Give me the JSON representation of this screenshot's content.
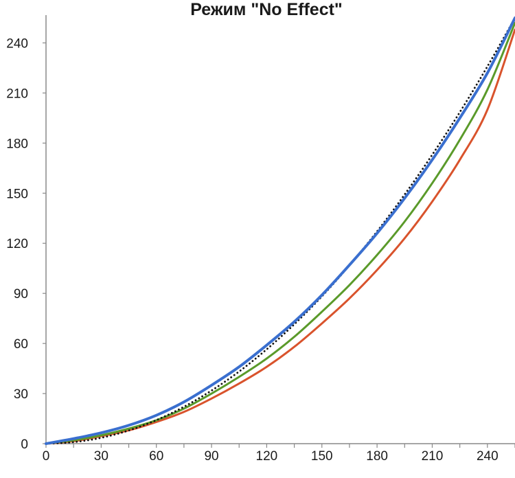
{
  "chart_data": {
    "type": "line",
    "title": "Режим \"No Effect\"",
    "xlabel": "",
    "ylabel": "",
    "xlim": [
      0,
      255
    ],
    "ylim": [
      0,
      255
    ],
    "xticks": [
      "0",
      "30",
      "60",
      "90",
      "120",
      "150",
      "180",
      "210",
      "240"
    ],
    "yticks": [
      "0",
      "30",
      "60",
      "90",
      "120",
      "150",
      "180",
      "210",
      "240"
    ],
    "grid": false,
    "legend": "none",
    "series": [
      {
        "color": "#3a6fcf",
        "style": "solid",
        "x": [
          0,
          15,
          30,
          45,
          60,
          75,
          90,
          105,
          120,
          135,
          150,
          165,
          180,
          195,
          210,
          225,
          240,
          255
        ],
        "y": [
          0,
          3,
          6.5,
          11,
          17,
          25,
          35,
          46,
          59,
          73,
          89,
          107,
          126,
          147,
          170,
          195,
          222,
          255
        ]
      },
      {
        "color": "#5a9a2a",
        "style": "solid",
        "x": [
          0,
          15,
          30,
          45,
          60,
          75,
          90,
          105,
          120,
          135,
          150,
          165,
          180,
          195,
          210,
          225,
          240,
          255
        ],
        "y": [
          0,
          2,
          5,
          9,
          14,
          21,
          30,
          40,
          51,
          64,
          79,
          95,
          113,
          133,
          156,
          182,
          212,
          252
        ]
      },
      {
        "color": "#d9532c",
        "style": "solid",
        "x": [
          0,
          15,
          30,
          45,
          60,
          75,
          90,
          105,
          120,
          135,
          150,
          165,
          180,
          195,
          210,
          225,
          240,
          255
        ],
        "y": [
          0,
          1.5,
          4.5,
          8,
          13,
          19,
          27,
          36,
          46,
          58,
          72,
          87,
          104,
          123,
          145,
          170,
          200,
          248
        ]
      },
      {
        "color": "#111111",
        "style": "dotted",
        "x": [
          0,
          15,
          30,
          45,
          60,
          75,
          90,
          105,
          120,
          135,
          150,
          165,
          180,
          195,
          210,
          225,
          240,
          255
        ],
        "y": [
          0,
          0.9,
          3.5,
          7.9,
          14.1,
          22.1,
          31.8,
          43.2,
          56.5,
          71.5,
          88.2,
          106.8,
          127.1,
          149.2,
          173,
          198.5,
          225.9,
          255
        ]
      }
    ]
  }
}
